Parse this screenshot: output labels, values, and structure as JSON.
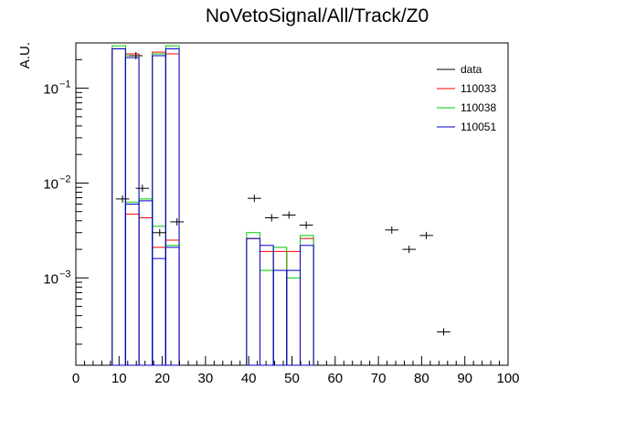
{
  "chart_data": {
    "type": "histogram",
    "title": "NoVetoSignal/All/Track/Z0",
    "xlabel": "",
    "ylabel": "A.U.",
    "xlim": [
      0,
      100
    ],
    "ylim": [
      0.00012,
      0.3
    ],
    "yscale": "log",
    "bin_width": 3.1,
    "x_ticks": [
      "0",
      "10",
      "20",
      "30",
      "40",
      "50",
      "60",
      "70",
      "80",
      "90",
      "100"
    ],
    "y_ticks": [
      {
        "value": 0.1,
        "base": "10",
        "exp": "−1"
      },
      {
        "value": 0.01,
        "base": "10",
        "exp": "−2"
      },
      {
        "value": 0.001,
        "base": "10",
        "exp": "−3"
      }
    ],
    "legend_position": "top-right",
    "series": [
      {
        "name": "data",
        "kind": "points",
        "color": "#000000",
        "x": [
          10.8,
          13.9,
          15.4,
          19.4,
          23.4,
          41.3,
          45.3,
          49.3,
          53.3,
          73.1,
          77.1,
          81.1,
          85.1
        ],
        "y": [
          0.0068,
          0.22,
          0.0088,
          0.003,
          0.0039,
          0.0069,
          0.0043,
          0.0046,
          0.0036,
          0.0032,
          0.002,
          0.0028,
          0.00027
        ]
      },
      {
        "name": "110033",
        "kind": "hist",
        "color": "#ff0000",
        "bins": [
          [
            8.4,
            11.5,
            0.26
          ],
          [
            11.5,
            14.6,
            0.0047
          ],
          [
            11.5,
            14.6,
            0.23
          ],
          [
            14.6,
            17.7,
            0.0043
          ],
          [
            17.7,
            20.8,
            0.0021
          ],
          [
            17.7,
            20.8,
            0.24
          ],
          [
            20.8,
            23.9,
            0.23
          ],
          [
            20.8,
            23.9,
            0.0025
          ],
          [
            39.5,
            42.6,
            0.0026
          ],
          [
            42.6,
            45.7,
            0.0019
          ],
          [
            45.7,
            48.8,
            0.0019
          ],
          [
            48.8,
            51.9,
            0.0019
          ],
          [
            51.9,
            55.0,
            0.0026
          ]
        ]
      },
      {
        "name": "110038",
        "kind": "hist",
        "color": "#00cc00",
        "bins": [
          [
            8.4,
            11.5,
            0.28
          ],
          [
            11.5,
            14.6,
            0.0063
          ],
          [
            11.5,
            14.6,
            0.22
          ],
          [
            14.6,
            17.7,
            0.0068
          ],
          [
            17.7,
            20.8,
            0.0035
          ],
          [
            17.7,
            20.8,
            0.23
          ],
          [
            20.8,
            23.9,
            0.28
          ],
          [
            20.8,
            23.9,
            0.0022
          ],
          [
            39.5,
            42.6,
            0.003
          ],
          [
            42.6,
            45.7,
            0.0012
          ],
          [
            45.7,
            48.8,
            0.0021
          ],
          [
            48.8,
            51.9,
            0.001
          ],
          [
            51.9,
            55.0,
            0.0028
          ]
        ]
      },
      {
        "name": "110051",
        "kind": "hist",
        "color": "#0000cc",
        "bins": [
          [
            8.4,
            11.5,
            0.26
          ],
          [
            11.5,
            14.6,
            0.006
          ],
          [
            11.5,
            14.6,
            0.21
          ],
          [
            14.6,
            17.7,
            0.0065
          ],
          [
            17.7,
            20.8,
            0.0016
          ],
          [
            17.7,
            20.8,
            0.22
          ],
          [
            20.8,
            23.9,
            0.26
          ],
          [
            20.8,
            23.9,
            0.0021
          ],
          [
            39.5,
            42.6,
            0.0026
          ],
          [
            42.6,
            45.7,
            0.0022
          ],
          [
            45.7,
            48.8,
            0.0012
          ],
          [
            48.8,
            51.9,
            0.0012
          ],
          [
            51.9,
            55.0,
            0.0022
          ]
        ]
      }
    ]
  }
}
